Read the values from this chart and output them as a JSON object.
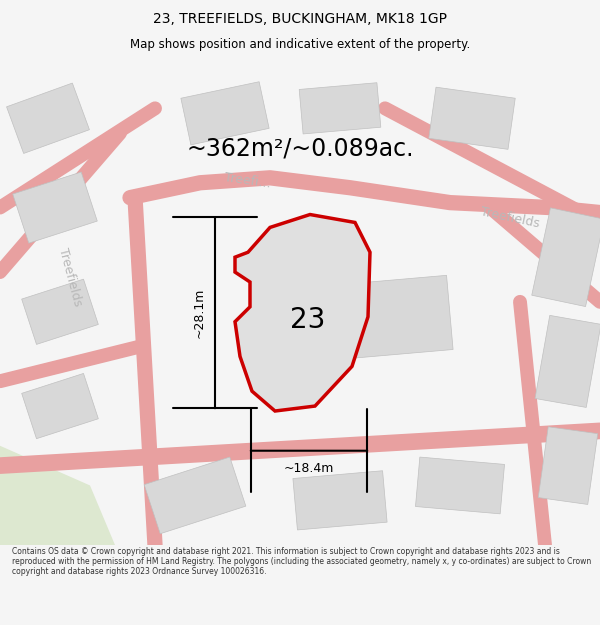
{
  "title": "23, TREEFIELDS, BUCKINGHAM, MK18 1GP",
  "subtitle": "Map shows position and indicative extent of the property.",
  "area_label": "~362m²/~0.089ac.",
  "property_number": "23",
  "dim_width": "~18.4m",
  "dim_height": "~28.1m",
  "footnote": "Contains OS data © Crown copyright and database right 2021. This information is subject to Crown copyright and database rights 2023 and is reproduced with the permission of HM Land Registry. The polygons (including the associated geometry, namely x, y co-ordinates) are subject to Crown copyright and database rights 2023 Ordnance Survey 100026316.",
  "bg_color": "#f5f5f5",
  "map_bg": "#ffffff",
  "road_color": "#e8a0a0",
  "building_color": "#d8d8d8",
  "building_edge": "#c0c0c0",
  "property_fill": "#e0e0e0",
  "property_edge": "#cc0000",
  "title_color": "#000000",
  "street_label_color": "#b8b8b8",
  "green_color": "#dde8d0"
}
